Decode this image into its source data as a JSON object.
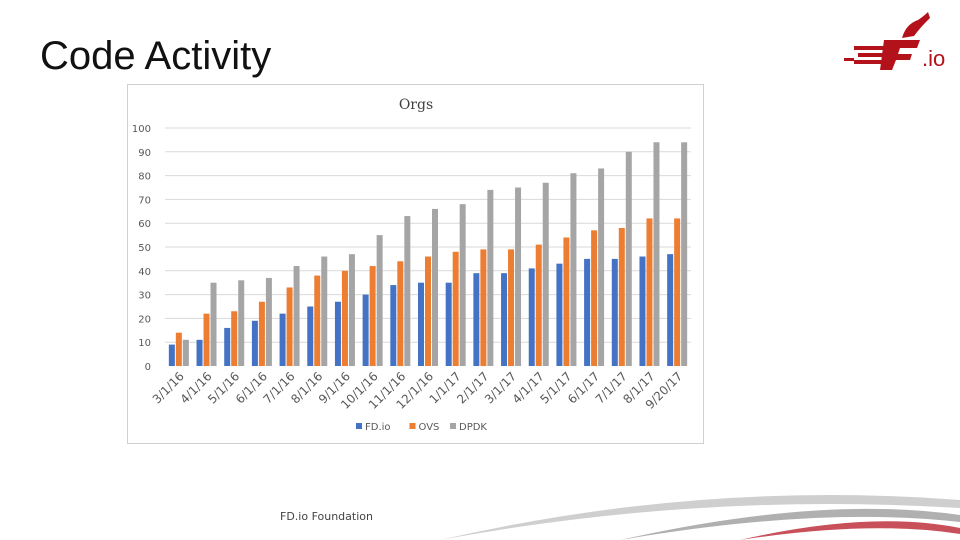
{
  "slide": {
    "title": "Code Activity",
    "logo_text": ".io",
    "footer": "FD.io Foundation"
  },
  "colors": {
    "fdio": "#4472c4",
    "ovs": "#ed7d31",
    "dpdk": "#a5a5a5",
    "grid": "#d9d9d9",
    "axis_text": "#595959",
    "brand": "#b4121b"
  },
  "chart_data": {
    "type": "bar",
    "title": "Orgs",
    "xlabel": "",
    "ylabel": "",
    "ylim": [
      0,
      100
    ],
    "yticks": [
      0,
      10,
      20,
      30,
      40,
      50,
      60,
      70,
      80,
      90,
      100
    ],
    "grid": true,
    "legend_position": "bottom",
    "categories": [
      "3/1/16",
      "4/1/16",
      "5/1/16",
      "6/1/16",
      "7/1/16",
      "8/1/16",
      "9/1/16",
      "10/1/16",
      "11/1/16",
      "12/1/16",
      "1/1/17",
      "2/1/17",
      "3/1/17",
      "4/1/17",
      "5/1/17",
      "6/1/17",
      "7/1/17",
      "8/1/17",
      "9/20/17"
    ],
    "series": [
      {
        "name": "FD.io",
        "values": [
          9,
          11,
          16,
          19,
          22,
          25,
          27,
          30,
          34,
          35,
          35,
          39,
          39,
          41,
          43,
          45,
          45,
          46,
          47
        ]
      },
      {
        "name": "OVS",
        "values": [
          14,
          22,
          23,
          27,
          33,
          38,
          40,
          42,
          44,
          46,
          48,
          49,
          49,
          51,
          54,
          57,
          58,
          62,
          62
        ]
      },
      {
        "name": "DPDK",
        "values": [
          11,
          35,
          36,
          37,
          42,
          46,
          47,
          55,
          63,
          66,
          68,
          74,
          75,
          77,
          81,
          83,
          90,
          94,
          94
        ]
      }
    ]
  }
}
